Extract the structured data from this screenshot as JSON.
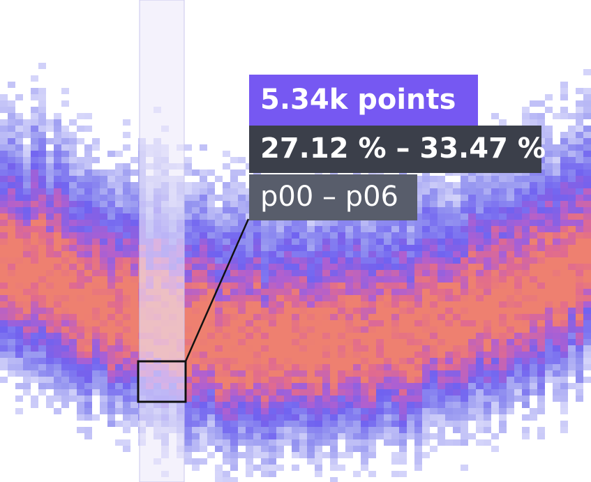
{
  "tooltip": {
    "count": "5.34k points",
    "range": "27.12 % – 33.47 %",
    "percentiles": "p00 – p06"
  }
}
